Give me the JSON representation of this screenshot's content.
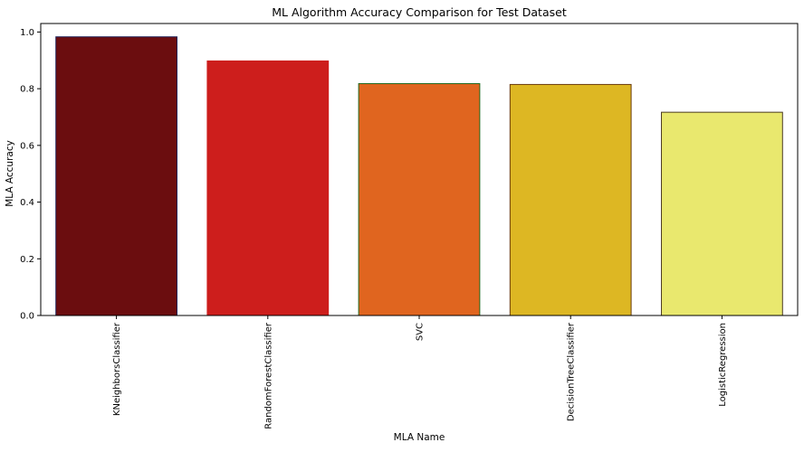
{
  "chart_data": {
    "type": "bar",
    "title": "ML Algorithm Accuracy Comparison for Test Dataset",
    "xlabel": "MLA Name",
    "ylabel": "MLA Accuracy",
    "categories": [
      "KNeighborsClassifier",
      "RandomForestClassifier",
      "SVC",
      "DecisionTreeClassifier",
      "LogisticRegression"
    ],
    "values": [
      0.983,
      0.898,
      0.818,
      0.815,
      0.717
    ],
    "bar_colors": [
      "#6b0d0f",
      "#cd1e1c",
      "#e0651f",
      "#ddb723",
      "#e9e86e"
    ],
    "edge_colors": [
      "#1f1f55",
      "#cd1e1c",
      "#226b22",
      "#6a3a10",
      "#4a3a20"
    ],
    "ylim": [
      0,
      1.0
    ],
    "yticks": [
      "0.0",
      "0.2",
      "0.4",
      "0.6",
      "0.8",
      "1.0"
    ],
    "grid": false,
    "legend": "none"
  }
}
